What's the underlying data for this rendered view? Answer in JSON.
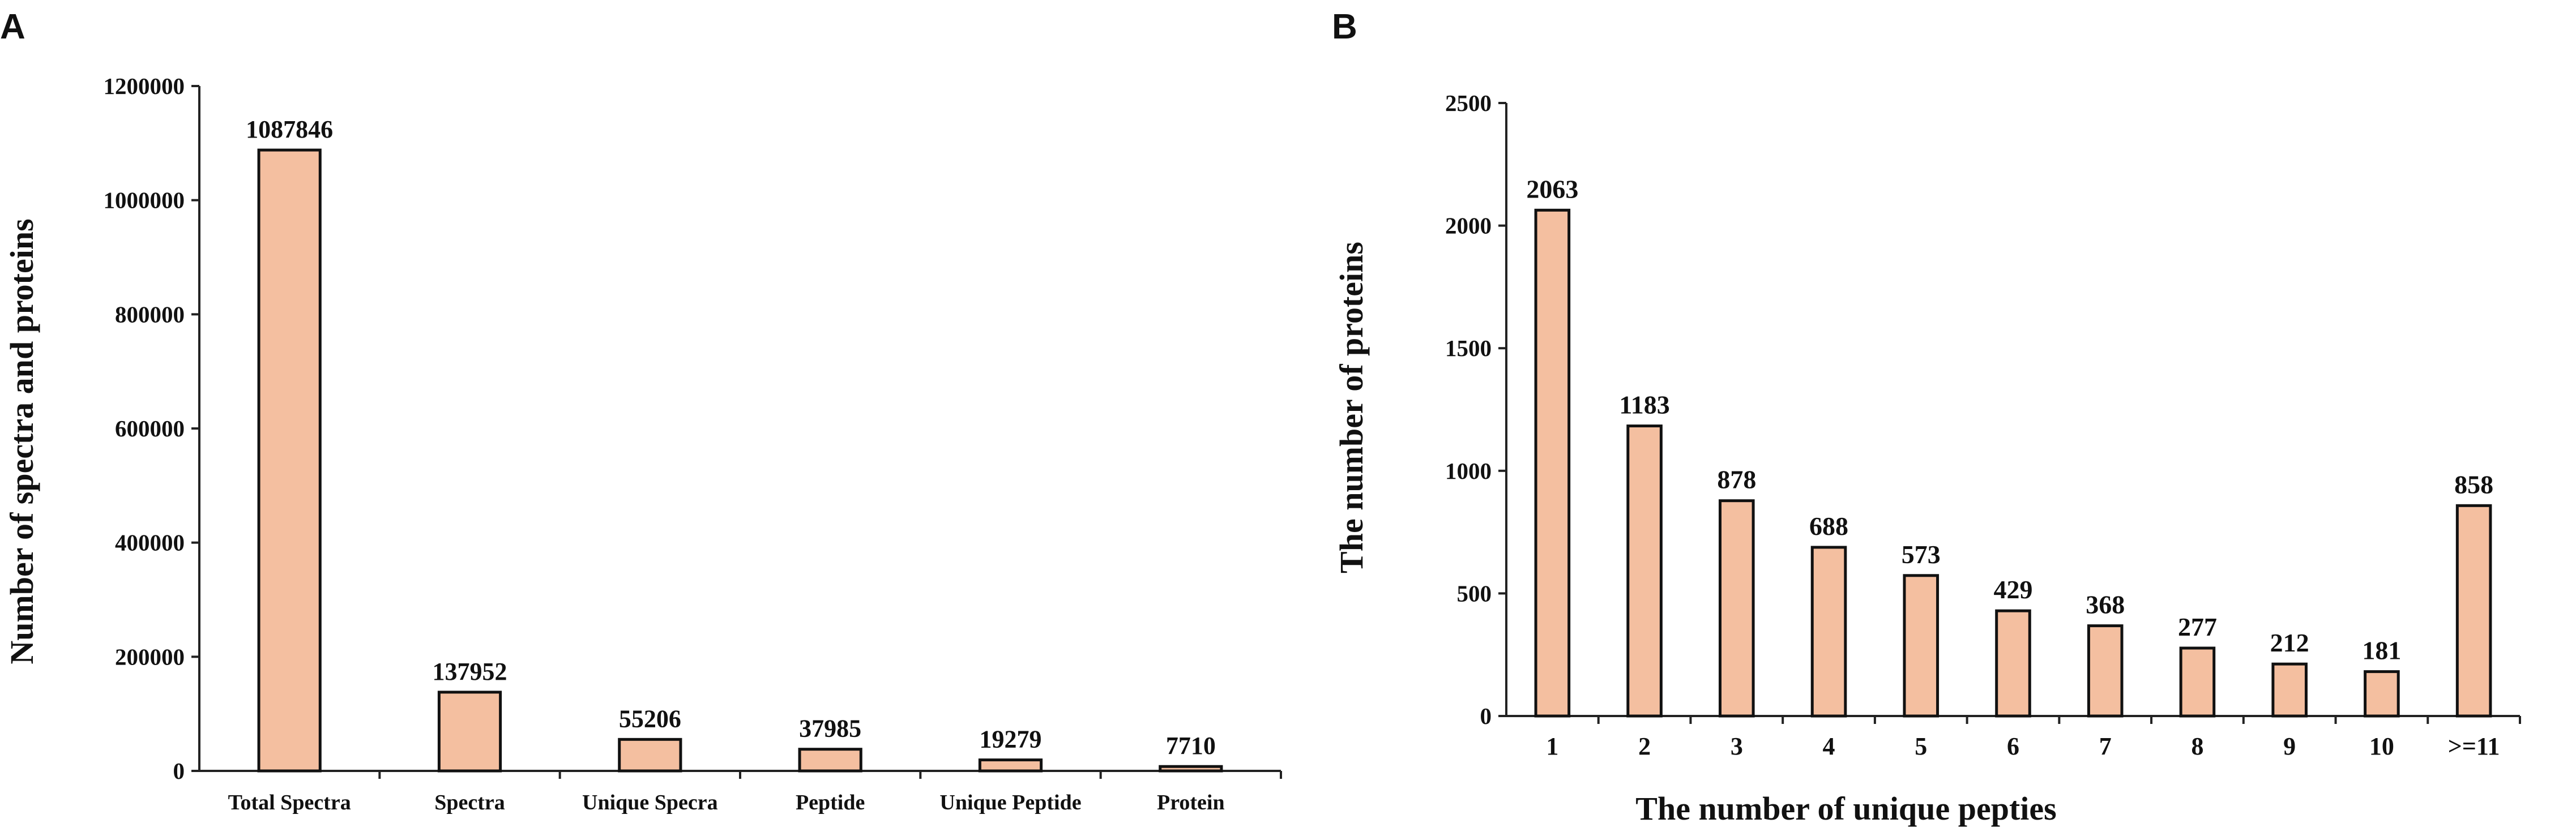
{
  "chart_data": [
    {
      "panel": "A",
      "type": "bar",
      "title": "",
      "xlabel": "",
      "ylabel": "Number of spectra and proteins",
      "categories": [
        "Total Spectra",
        "Spectra",
        "Unique Specra",
        "Peptide",
        "Unique Peptide",
        "Protein"
      ],
      "values": [
        1087846,
        137952,
        55206,
        37985,
        19279,
        7710
      ],
      "data_labels": [
        "1087846",
        "137952",
        "55206",
        "37985",
        "19279",
        "7710"
      ],
      "ylim": [
        0,
        1200000
      ],
      "yticks": [
        "0",
        "200000",
        "400000",
        "600000",
        "800000",
        "1000000",
        "1200000"
      ],
      "bar_color": "#f4bfa0",
      "grid": false,
      "legend": "none"
    },
    {
      "panel": "B",
      "type": "bar",
      "title": "",
      "xlabel": "The number of unique pepties",
      "ylabel": "The number of  proteins",
      "categories": [
        "1",
        "2",
        "3",
        "4",
        "5",
        "6",
        "7",
        "8",
        "9",
        "10",
        ">=11"
      ],
      "values": [
        2063,
        1183,
        878,
        688,
        573,
        429,
        368,
        277,
        212,
        181,
        858
      ],
      "data_labels": [
        "2063",
        "1183",
        "878",
        "688",
        "573",
        "429",
        "368",
        "277",
        "212",
        "181",
        "858"
      ],
      "ylim": [
        0,
        2500
      ],
      "yticks": [
        "0",
        "500",
        "1000",
        "1500",
        "2000",
        "2500"
      ],
      "bar_color": "#f4bfa0",
      "grid": false,
      "legend": "none"
    }
  ]
}
